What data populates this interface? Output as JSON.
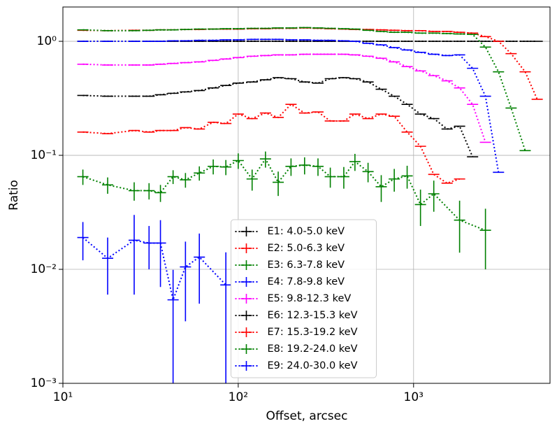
{
  "chart_data": {
    "type": "errorbar",
    "xlabel": "Offset, arcsec",
    "ylabel": "Ratio",
    "xscale": "log",
    "yscale": "log",
    "grid": true,
    "legend": "lower center",
    "xlim": [
      10,
      6000
    ],
    "ylim": [
      0.001,
      2
    ],
    "xticks": [
      {
        "value": 10,
        "label": "10¹"
      },
      {
        "value": 100,
        "label": "10²"
      },
      {
        "value": 1000,
        "label": "10³"
      }
    ],
    "yticks": [
      {
        "value": 0.001,
        "label": "10⁻³"
      },
      {
        "value": 0.01,
        "label": "10⁻²"
      },
      {
        "value": 0.1,
        "label": "10⁻¹"
      },
      {
        "value": 1,
        "label": "10⁰"
      }
    ],
    "series": [
      {
        "name": "E1: 4.0-5.0 keV",
        "color": "#000000",
        "x": [
          13,
          18,
          25.5,
          31,
          36,
          42.5,
          50,
          60,
          72,
          85,
          100,
          120,
          143,
          169,
          200,
          239,
          285,
          335,
          400,
          463,
          550,
          654,
          776,
          919,
          1095,
          1304,
          1553,
          1830,
          2170,
          2570,
          3050,
          3600,
          4330,
          5070
        ],
        "values": [
          1,
          1,
          1,
          1,
          1,
          1,
          1,
          1,
          1,
          1,
          1,
          1,
          1,
          1,
          1,
          1,
          1,
          1,
          1,
          1,
          1,
          1,
          1,
          1,
          1,
          1,
          1,
          1,
          1,
          1,
          1,
          1,
          1,
          1
        ]
      },
      {
        "name": "E2: 5.0-6.3 keV",
        "color": "#ff0000",
        "x": [
          13,
          18,
          25.5,
          31,
          36,
          42.5,
          50,
          60,
          72,
          85,
          100,
          120,
          143,
          169,
          200,
          239,
          285,
          335,
          400,
          463,
          550,
          654,
          776,
          919,
          1095,
          1304,
          1553,
          1830,
          2170,
          2570,
          3050,
          3600,
          4330,
          5070
        ],
        "values": [
          1.25,
          1.24,
          1.25,
          1.25,
          1.26,
          1.26,
          1.27,
          1.27,
          1.28,
          1.28,
          1.28,
          1.29,
          1.29,
          1.3,
          1.3,
          1.31,
          1.3,
          1.29,
          1.28,
          1.27,
          1.27,
          1.26,
          1.25,
          1.24,
          1.24,
          1.22,
          1.22,
          1.2,
          1.18,
          1.1,
          1.0,
          0.78,
          0.54,
          0.31
        ]
      },
      {
        "name": "E3: 6.3-7.8 keV",
        "color": "#008000",
        "x": [
          13,
          18,
          25.5,
          31,
          36,
          42.5,
          50,
          60,
          72,
          85,
          100,
          120,
          143,
          169,
          200,
          239,
          285,
          335,
          400,
          463,
          550,
          654,
          776,
          919,
          1095,
          1304,
          1553,
          1830,
          2170,
          2570,
          3050,
          3600,
          4330
        ],
        "values": [
          1.26,
          1.24,
          1.24,
          1.25,
          1.26,
          1.26,
          1.27,
          1.28,
          1.28,
          1.29,
          1.29,
          1.3,
          1.3,
          1.31,
          1.31,
          1.32,
          1.31,
          1.3,
          1.29,
          1.28,
          1.25,
          1.22,
          1.2,
          1.2,
          1.18,
          1.18,
          1.17,
          1.16,
          1.15,
          0.89,
          0.54,
          0.26,
          0.11
        ]
      },
      {
        "name": "E4: 7.8-9.8 keV",
        "color": "#0000ff",
        "x": [
          13,
          18,
          25.5,
          31,
          36,
          42.5,
          50,
          60,
          72,
          85,
          100,
          120,
          143,
          169,
          200,
          239,
          285,
          335,
          400,
          463,
          550,
          654,
          776,
          919,
          1095,
          1304,
          1553,
          1830,
          2170,
          2570,
          3050
        ],
        "values": [
          1.0,
          1.0,
          1.0,
          1.0,
          1.0,
          1.01,
          1.01,
          1.02,
          1.02,
          1.03,
          1.03,
          1.04,
          1.04,
          1.04,
          1.03,
          1.03,
          1.02,
          1.02,
          1.01,
          1.0,
          0.96,
          0.93,
          0.88,
          0.84,
          0.8,
          0.77,
          0.75,
          0.76,
          0.58,
          0.33,
          0.071
        ]
      },
      {
        "name": "E5: 9.8-12.3 keV",
        "color": "#ff00ff",
        "x": [
          13,
          18,
          25.5,
          31,
          36,
          42.5,
          50,
          60,
          72,
          85,
          100,
          120,
          143,
          169,
          200,
          239,
          285,
          335,
          400,
          463,
          550,
          654,
          776,
          919,
          1095,
          1304,
          1553,
          1830,
          2170,
          2570
        ],
        "values": [
          0.63,
          0.62,
          0.62,
          0.62,
          0.63,
          0.64,
          0.65,
          0.66,
          0.68,
          0.7,
          0.72,
          0.74,
          0.75,
          0.76,
          0.76,
          0.77,
          0.77,
          0.77,
          0.77,
          0.76,
          0.74,
          0.71,
          0.66,
          0.6,
          0.55,
          0.5,
          0.45,
          0.39,
          0.28,
          0.13
        ]
      },
      {
        "name": "E6: 12.3-15.3 keV",
        "color": "#000000",
        "x": [
          13,
          18,
          25.5,
          31,
          36,
          42.5,
          50,
          60,
          72,
          85,
          100,
          120,
          143,
          169,
          200,
          239,
          285,
          335,
          400,
          463,
          550,
          654,
          776,
          919,
          1095,
          1304,
          1553,
          1830,
          2170
        ],
        "values": [
          0.335,
          0.33,
          0.33,
          0.33,
          0.34,
          0.35,
          0.36,
          0.37,
          0.39,
          0.41,
          0.43,
          0.44,
          0.46,
          0.48,
          0.47,
          0.44,
          0.43,
          0.47,
          0.48,
          0.47,
          0.44,
          0.38,
          0.33,
          0.28,
          0.23,
          0.21,
          0.17,
          0.18,
          0.097
        ]
      },
      {
        "name": "E7: 15.3-19.2 keV",
        "color": "#ff0000",
        "x": [
          13,
          18,
          25.5,
          31,
          36,
          42.5,
          50,
          60,
          72,
          85,
          100,
          120,
          143,
          169,
          200,
          239,
          285,
          335,
          400,
          463,
          550,
          654,
          776,
          919,
          1095,
          1304,
          1553,
          1830
        ],
        "values": [
          0.16,
          0.155,
          0.165,
          0.16,
          0.165,
          0.165,
          0.175,
          0.17,
          0.195,
          0.19,
          0.23,
          0.21,
          0.235,
          0.215,
          0.28,
          0.235,
          0.24,
          0.2,
          0.2,
          0.23,
          0.21,
          0.23,
          0.22,
          0.16,
          0.12,
          0.068,
          0.057,
          0.062
        ]
      },
      {
        "name": "E8: 19.2-24.0 keV",
        "color": "#008000",
        "x": [
          13,
          18,
          25.5,
          31,
          36,
          42.5,
          50,
          60,
          72,
          85,
          100,
          120,
          143,
          169,
          200,
          239,
          285,
          335,
          400,
          463,
          550,
          654,
          776,
          919,
          1095,
          1304,
          1830,
          2570
        ],
        "values": [
          0.065,
          0.055,
          0.049,
          0.049,
          0.047,
          0.065,
          0.061,
          0.07,
          0.08,
          0.079,
          0.09,
          0.062,
          0.093,
          0.058,
          0.08,
          0.082,
          0.08,
          0.065,
          0.065,
          0.088,
          0.072,
          0.053,
          0.062,
          0.066,
          0.037,
          0.046,
          0.027,
          0.022
        ],
        "yerr": [
          0.01,
          0.009,
          0.009,
          0.008,
          0.008,
          0.009,
          0.009,
          0.01,
          0.012,
          0.012,
          0.014,
          0.013,
          0.015,
          0.014,
          0.014,
          0.014,
          0.014,
          0.013,
          0.014,
          0.015,
          0.014,
          0.014,
          0.014,
          0.015,
          0.013,
          0.014,
          0.013,
          0.012
        ]
      },
      {
        "name": "E9: 24.0-30.0 keV",
        "color": "#0000ff",
        "x": [
          13,
          18,
          25.5,
          31,
          36,
          42.5,
          50,
          60,
          85
        ],
        "values": [
          0.019,
          0.0125,
          0.018,
          0.017,
          0.017,
          0.0054,
          0.0105,
          0.0128,
          0.0073
        ],
        "yerr": [
          0.007,
          0.0065,
          0.012,
          0.007,
          0.01,
          0.0045,
          0.007,
          0.0078,
          0.0068
        ]
      }
    ]
  }
}
